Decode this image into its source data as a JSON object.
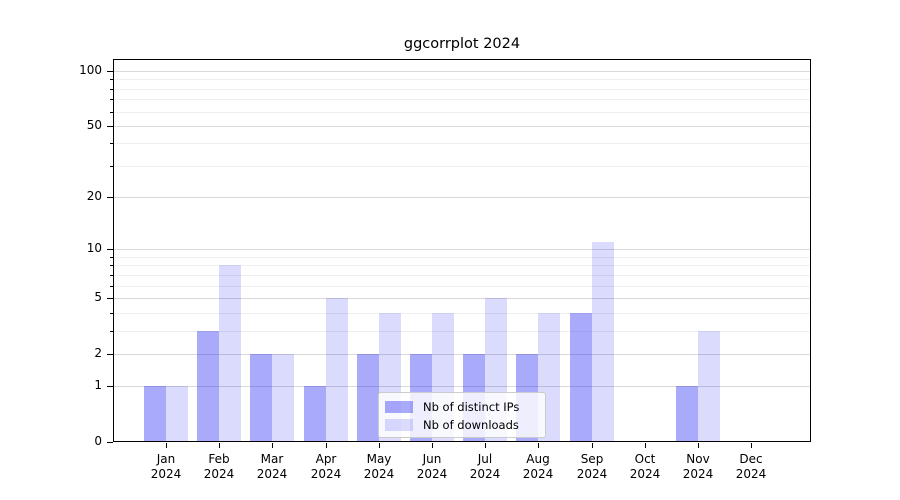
{
  "chart_data": {
    "type": "bar",
    "title": "ggcorrplot 2024",
    "x_tick_months": [
      "Jan",
      "Feb",
      "Mar",
      "Apr",
      "May",
      "Jun",
      "Jul",
      "Aug",
      "Sep",
      "Oct",
      "Nov",
      "Dec"
    ],
    "x_tick_year": "2024",
    "series": [
      {
        "name": "Nb of distinct IPs",
        "color": "rgba(16,20,242,0.36)",
        "color_hex_on_white": "#a9abfa",
        "values": [
          1,
          3,
          2,
          1,
          2,
          2,
          2,
          2,
          4,
          0,
          1,
          0
        ]
      },
      {
        "name": "Nb of downloads",
        "color": "rgba(16,20,242,0.15)",
        "color_hex_on_white": "#dcddfb",
        "values": [
          1,
          8,
          2,
          5,
          4,
          4,
          5,
          4,
          11,
          0,
          3,
          0
        ]
      }
    ],
    "y_axis": {
      "scale": "log1p",
      "major_ticks": [
        0,
        1,
        2,
        5,
        10,
        20,
        50,
        100
      ],
      "minor_ticks": [
        3,
        4,
        6,
        7,
        8,
        9,
        30,
        40,
        60,
        70,
        80,
        90
      ],
      "ylim": [
        0,
        116
      ]
    },
    "grid": {
      "orientation": "horizontal",
      "major_color": "#d9d9d9",
      "minor_color": "#efefef"
    },
    "legend_position": "lower center inside",
    "axis_color": "#000000",
    "background": "#ffffff"
  }
}
